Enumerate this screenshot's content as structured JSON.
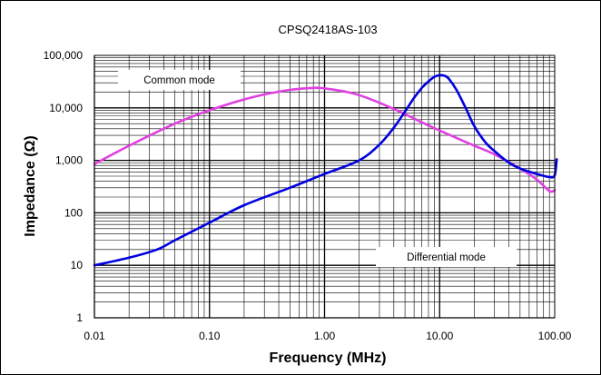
{
  "chart_data": {
    "type": "line",
    "title": "CPSQ2418AS-103",
    "xlabel": "Frequency (MHz)",
    "ylabel": "Impedance (Ω)",
    "x_scale": "log",
    "y_scale": "log",
    "xlim": [
      0.01,
      100
    ],
    "ylim": [
      1,
      100000
    ],
    "grid": true,
    "x_tick_labels": [
      "0.01",
      "0.10",
      "1.00",
      "10.00",
      "100.00"
    ],
    "y_tick_labels": [
      "1",
      "10",
      "100",
      "1,000",
      "10,000",
      "100,000"
    ],
    "annotations": [
      "Common mode",
      "Differential mode"
    ],
    "colors": {
      "common_mode": "#e040e0",
      "differential_mode": "#0000e0"
    },
    "series": [
      {
        "key": "common_mode",
        "x": [
          0.01,
          0.02,
          0.05,
          0.1,
          0.2,
          0.3,
          0.5,
          0.8,
          1.0,
          1.5,
          2.0,
          3.0,
          5.0,
          7.0,
          10.0,
          15.0,
          20.0,
          30.0,
          50.0,
          70.0,
          90.0,
          100.0
        ],
        "y": [
          850,
          1900,
          5000,
          9000,
          14500,
          18000,
          22000,
          24000,
          23500,
          20500,
          17500,
          12500,
          7600,
          5300,
          3700,
          2500,
          1900,
          1300,
          700,
          430,
          260,
          270
        ]
      },
      {
        "key": "differential_mode",
        "x": [
          0.01,
          0.02,
          0.035,
          0.05,
          0.1,
          0.2,
          0.5,
          1.0,
          2.0,
          3.0,
          4.0,
          5.0,
          6.0,
          7.0,
          8.0,
          9.0,
          10.0,
          11.0,
          12.0,
          14.0,
          17.0,
          20.0,
          25.0,
          30.0,
          40.0,
          50.0,
          70.0,
          90.0,
          100.0,
          104.0
        ],
        "y": [
          10,
          14,
          20,
          30,
          65,
          140,
          300,
          550,
          1000,
          2000,
          4200,
          8500,
          15500,
          24000,
          32000,
          39000,
          42000,
          41000,
          36000,
          22000,
          9500,
          4500,
          2200,
          1500,
          900,
          700,
          550,
          480,
          520,
          1050
        ]
      }
    ]
  }
}
